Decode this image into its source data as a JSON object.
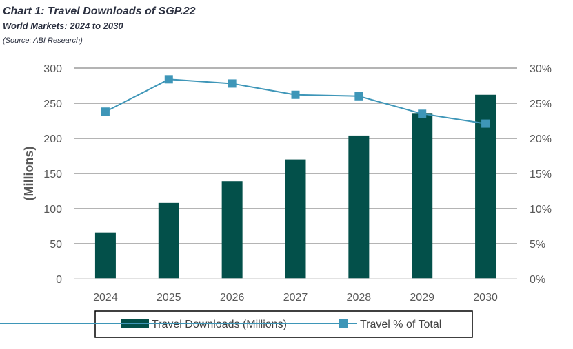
{
  "chart_data": {
    "type": "bar+line",
    "title": "Chart 1: Travel Downloads of SGP.22",
    "subtitle": "World Markets: 2024 to 2030",
    "source": "(Source: ABI Research)",
    "categories": [
      "2024",
      "2025",
      "2026",
      "2027",
      "2028",
      "2029",
      "2030"
    ],
    "ylabel": "(Millions)",
    "ylim": [
      0,
      300
    ],
    "yticks": [
      "0",
      "50",
      "100",
      "150",
      "200",
      "250",
      "300"
    ],
    "y2lim": [
      0,
      30
    ],
    "y2ticks": [
      "0%",
      "5%",
      "10%",
      "15%",
      "20%",
      "25%",
      "30%"
    ],
    "grid": true,
    "legend_position": "bottom",
    "series": [
      {
        "name": "Travel Downloads (Millions)",
        "type": "bar",
        "axis": "left",
        "color": "#03504a",
        "values": [
          66,
          108,
          139,
          170,
          204,
          236,
          262
        ]
      },
      {
        "name": "Travel % of Total",
        "type": "line",
        "axis": "right",
        "color": "#3e96b8",
        "values": [
          23.8,
          28.4,
          27.8,
          26.2,
          26.0,
          23.5,
          22.1
        ]
      }
    ]
  }
}
